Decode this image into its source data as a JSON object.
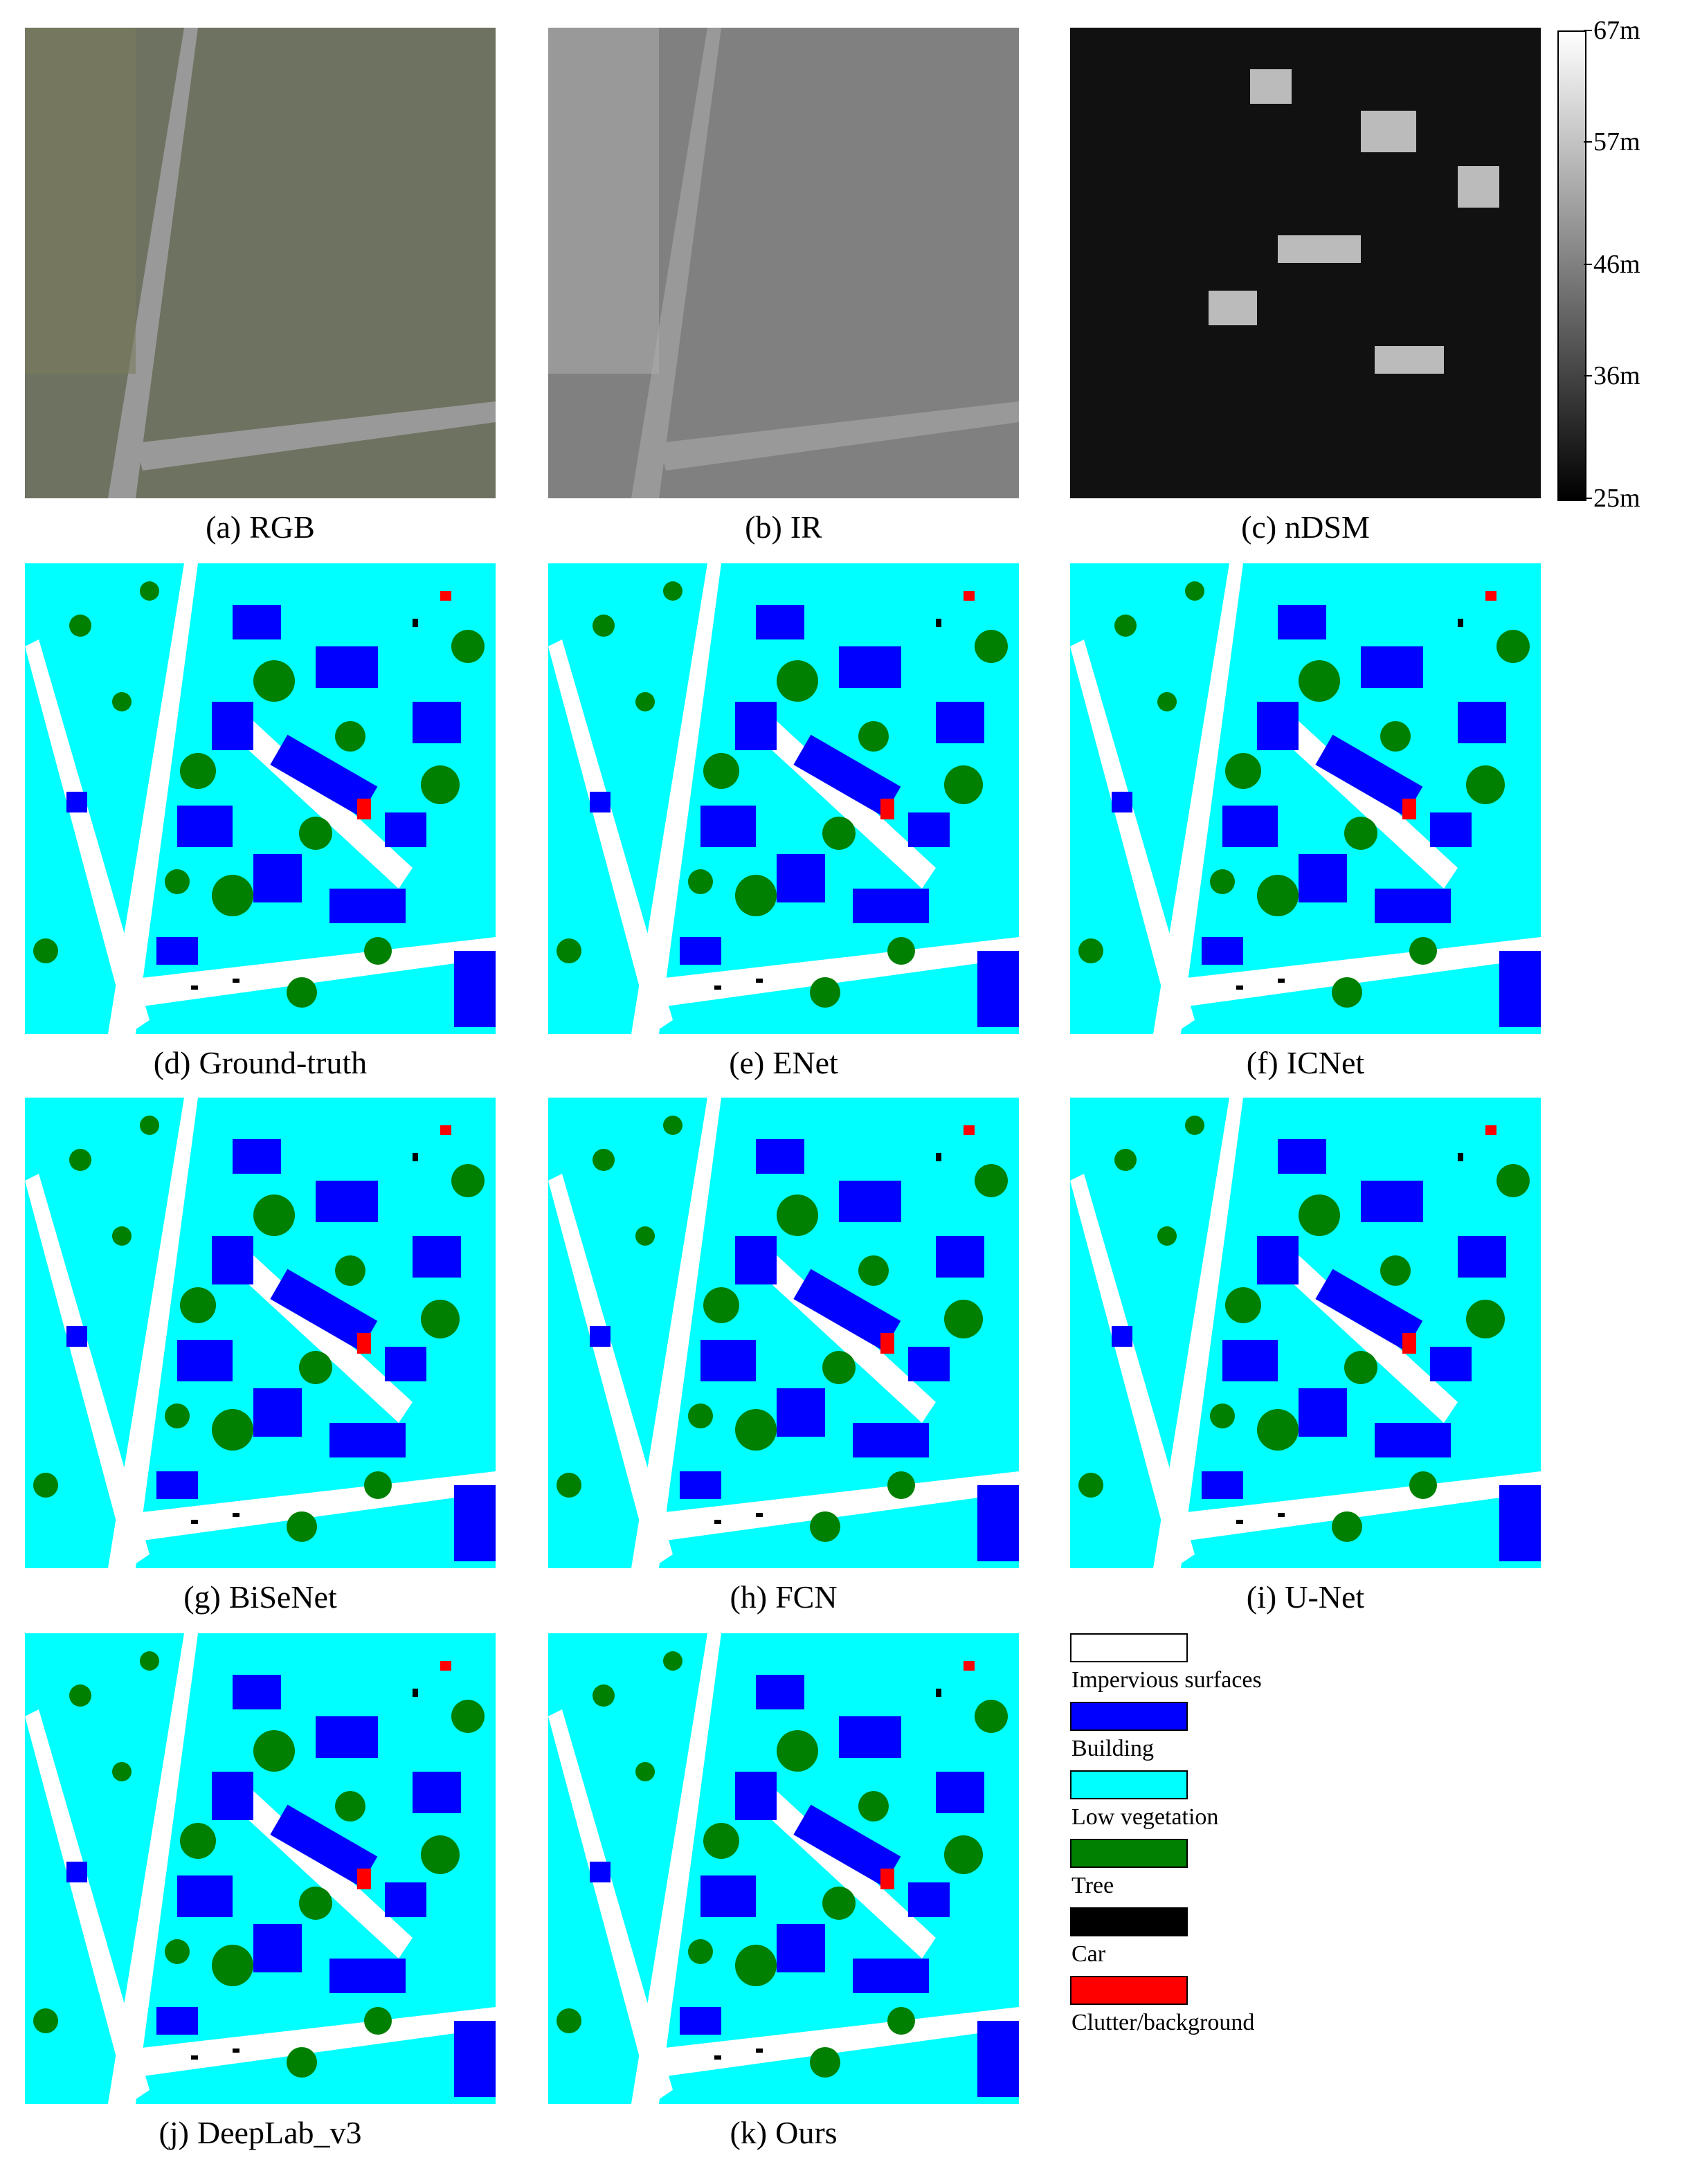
{
  "panels": [
    {
      "tag": "(a)",
      "name": "RGB"
    },
    {
      "tag": "(b)",
      "name": "IR"
    },
    {
      "tag": "(c)",
      "name": "nDSM"
    },
    {
      "tag": "(d)",
      "name": "Ground-truth"
    },
    {
      "tag": "(e)",
      "name": "ENet"
    },
    {
      "tag": "(f)",
      "name": "ICNet"
    },
    {
      "tag": "(g)",
      "name": "BiSeNet"
    },
    {
      "tag": "(h)",
      "name": "FCN"
    },
    {
      "tag": "(i)",
      "name": "U-Net"
    },
    {
      "tag": "(j)",
      "name": "DeepLab_v3"
    },
    {
      "tag": "(k)",
      "name": "Ours"
    }
  ],
  "colorbar": {
    "ticks": [
      {
        "value": 67,
        "label": "67m"
      },
      {
        "value": 57,
        "label": "57m"
      },
      {
        "value": 46,
        "label": "46m"
      },
      {
        "value": 36,
        "label": "36m"
      },
      {
        "value": 25,
        "label": "25m"
      }
    ]
  },
  "legend": [
    {
      "label": "Impervious surfaces",
      "color": "#ffffff"
    },
    {
      "label": "Building",
      "color": "#0000ff"
    },
    {
      "label": "Low vegetation",
      "color": "#00ffff"
    },
    {
      "label": "Tree",
      "color": "#008000"
    },
    {
      "label": "Car",
      "color": "#000000"
    },
    {
      "label": "Clutter/background",
      "color": "#ff0000"
    }
  ]
}
